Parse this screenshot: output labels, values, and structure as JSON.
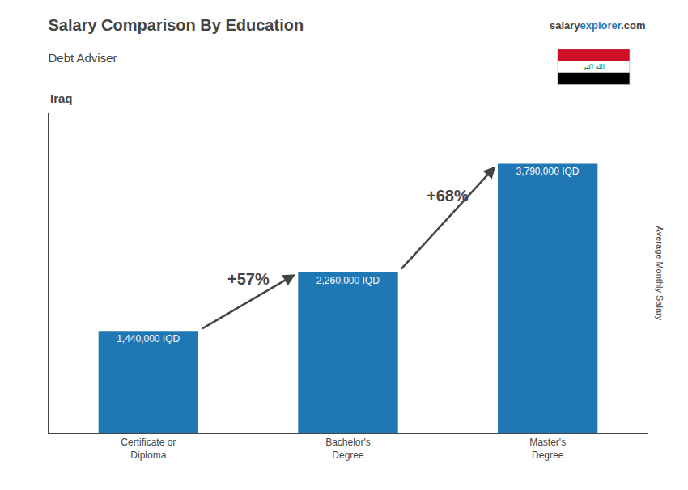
{
  "chart_data": {
    "type": "bar",
    "title": "Salary Comparison By Education",
    "subtitle": "Debt Adviser",
    "categories": [
      "Certificate or\nDiploma",
      "Bachelor's\nDegree",
      "Master's\nDegree"
    ],
    "values": [
      1440000,
      2260000,
      3790000
    ],
    "value_labels": [
      "1,440,000 IQD",
      "2,260,000 IQD",
      "3,790,000 IQD"
    ],
    "data_labels": true,
    "ylim": [
      0,
      4500000
    ],
    "tick_labels": "x",
    "grid": false,
    "annotations": [
      "+57%",
      "+68%",
      "Iraq",
      "Average Monthly Salary",
      "salary",
      "explorer",
      ".com",
      "الله اكبر"
    ]
  }
}
